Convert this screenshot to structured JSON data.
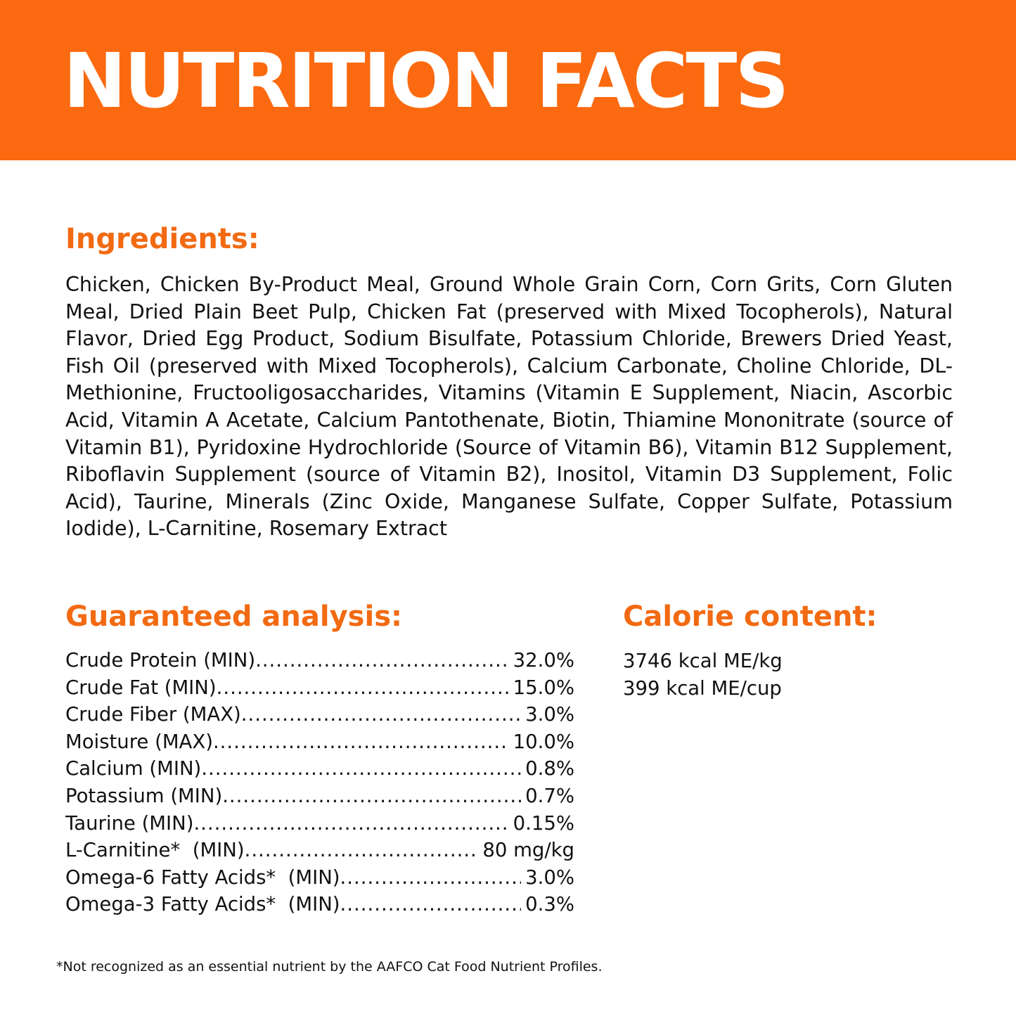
{
  "header": {
    "title": "NUTRITION FACTS"
  },
  "colors": {
    "header_background": "#fb6a10",
    "heading_text": "#f26a12",
    "body_text": "#111111"
  },
  "ingredients": {
    "heading": "Ingredients:",
    "text": "Chicken, Chicken By-Product Meal, Ground Whole Grain Corn, Corn Grits, Corn Gluten Meal, Dried Plain Beet Pulp, Chicken Fat (preserved with Mixed Tocopherols), Natural Flavor, Dried Egg Product, Sodium Bisulfate, Potassium Chloride, Brewers Dried Yeast, Fish Oil (preserved with Mixed Tocopherols), Calcium Carbonate, Choline Chloride, DL-Methionine, Fructooligosaccharides, Vitamins (Vitamin E Supplement, Niacin, Ascorbic Acid, Vitamin A Acetate, Calcium Pantothenate, Biotin, Thiamine Mononitrate (source of Vitamin B1), Pyridoxine Hydrochloride (Source of Vitamin B6), Vitamin B12 Supplement, Riboflavin Supplement (source of Vitamin B2), Inositol, Vitamin D3 Supplement, Folic Acid), Taurine, Minerals (Zinc Oxide, Manganese Sulfate, Copper Sulfate, Potassium Iodide), L-Carnitine, Rosemary Extract"
  },
  "analysis": {
    "heading": "Guaranteed analysis:",
    "rows": [
      {
        "label": "Crude Protein (MIN)",
        "value": "32.0%"
      },
      {
        "label": "Crude Fat (MIN)",
        "value": "15.0%"
      },
      {
        "label": "Crude Fiber (MAX)",
        "value": "3.0%"
      },
      {
        "label": "Moisture (MAX)",
        "value": "10.0%"
      },
      {
        "label": "Calcium (MIN)",
        "value": "0.8%"
      },
      {
        "label": "Potassium (MIN)",
        "value": "0.7%"
      },
      {
        "label": "Taurine (MIN)",
        "value": "0.15%"
      },
      {
        "label": "L-Carnitine*  (MIN)",
        "value": "80 mg/kg"
      },
      {
        "label": "Omega-6 Fatty Acids*  (MIN)",
        "value": "3.0%"
      },
      {
        "label": "Omega-3 Fatty Acids*  (MIN)",
        "value": "0.3%"
      }
    ]
  },
  "calorie": {
    "heading": "Calorie content:",
    "lines": [
      "3746 kcal ME/kg",
      "399 kcal ME/cup"
    ]
  },
  "footnote": "*Not recognized as an essential nutrient by the AAFCO Cat Food Nutrient Profiles."
}
